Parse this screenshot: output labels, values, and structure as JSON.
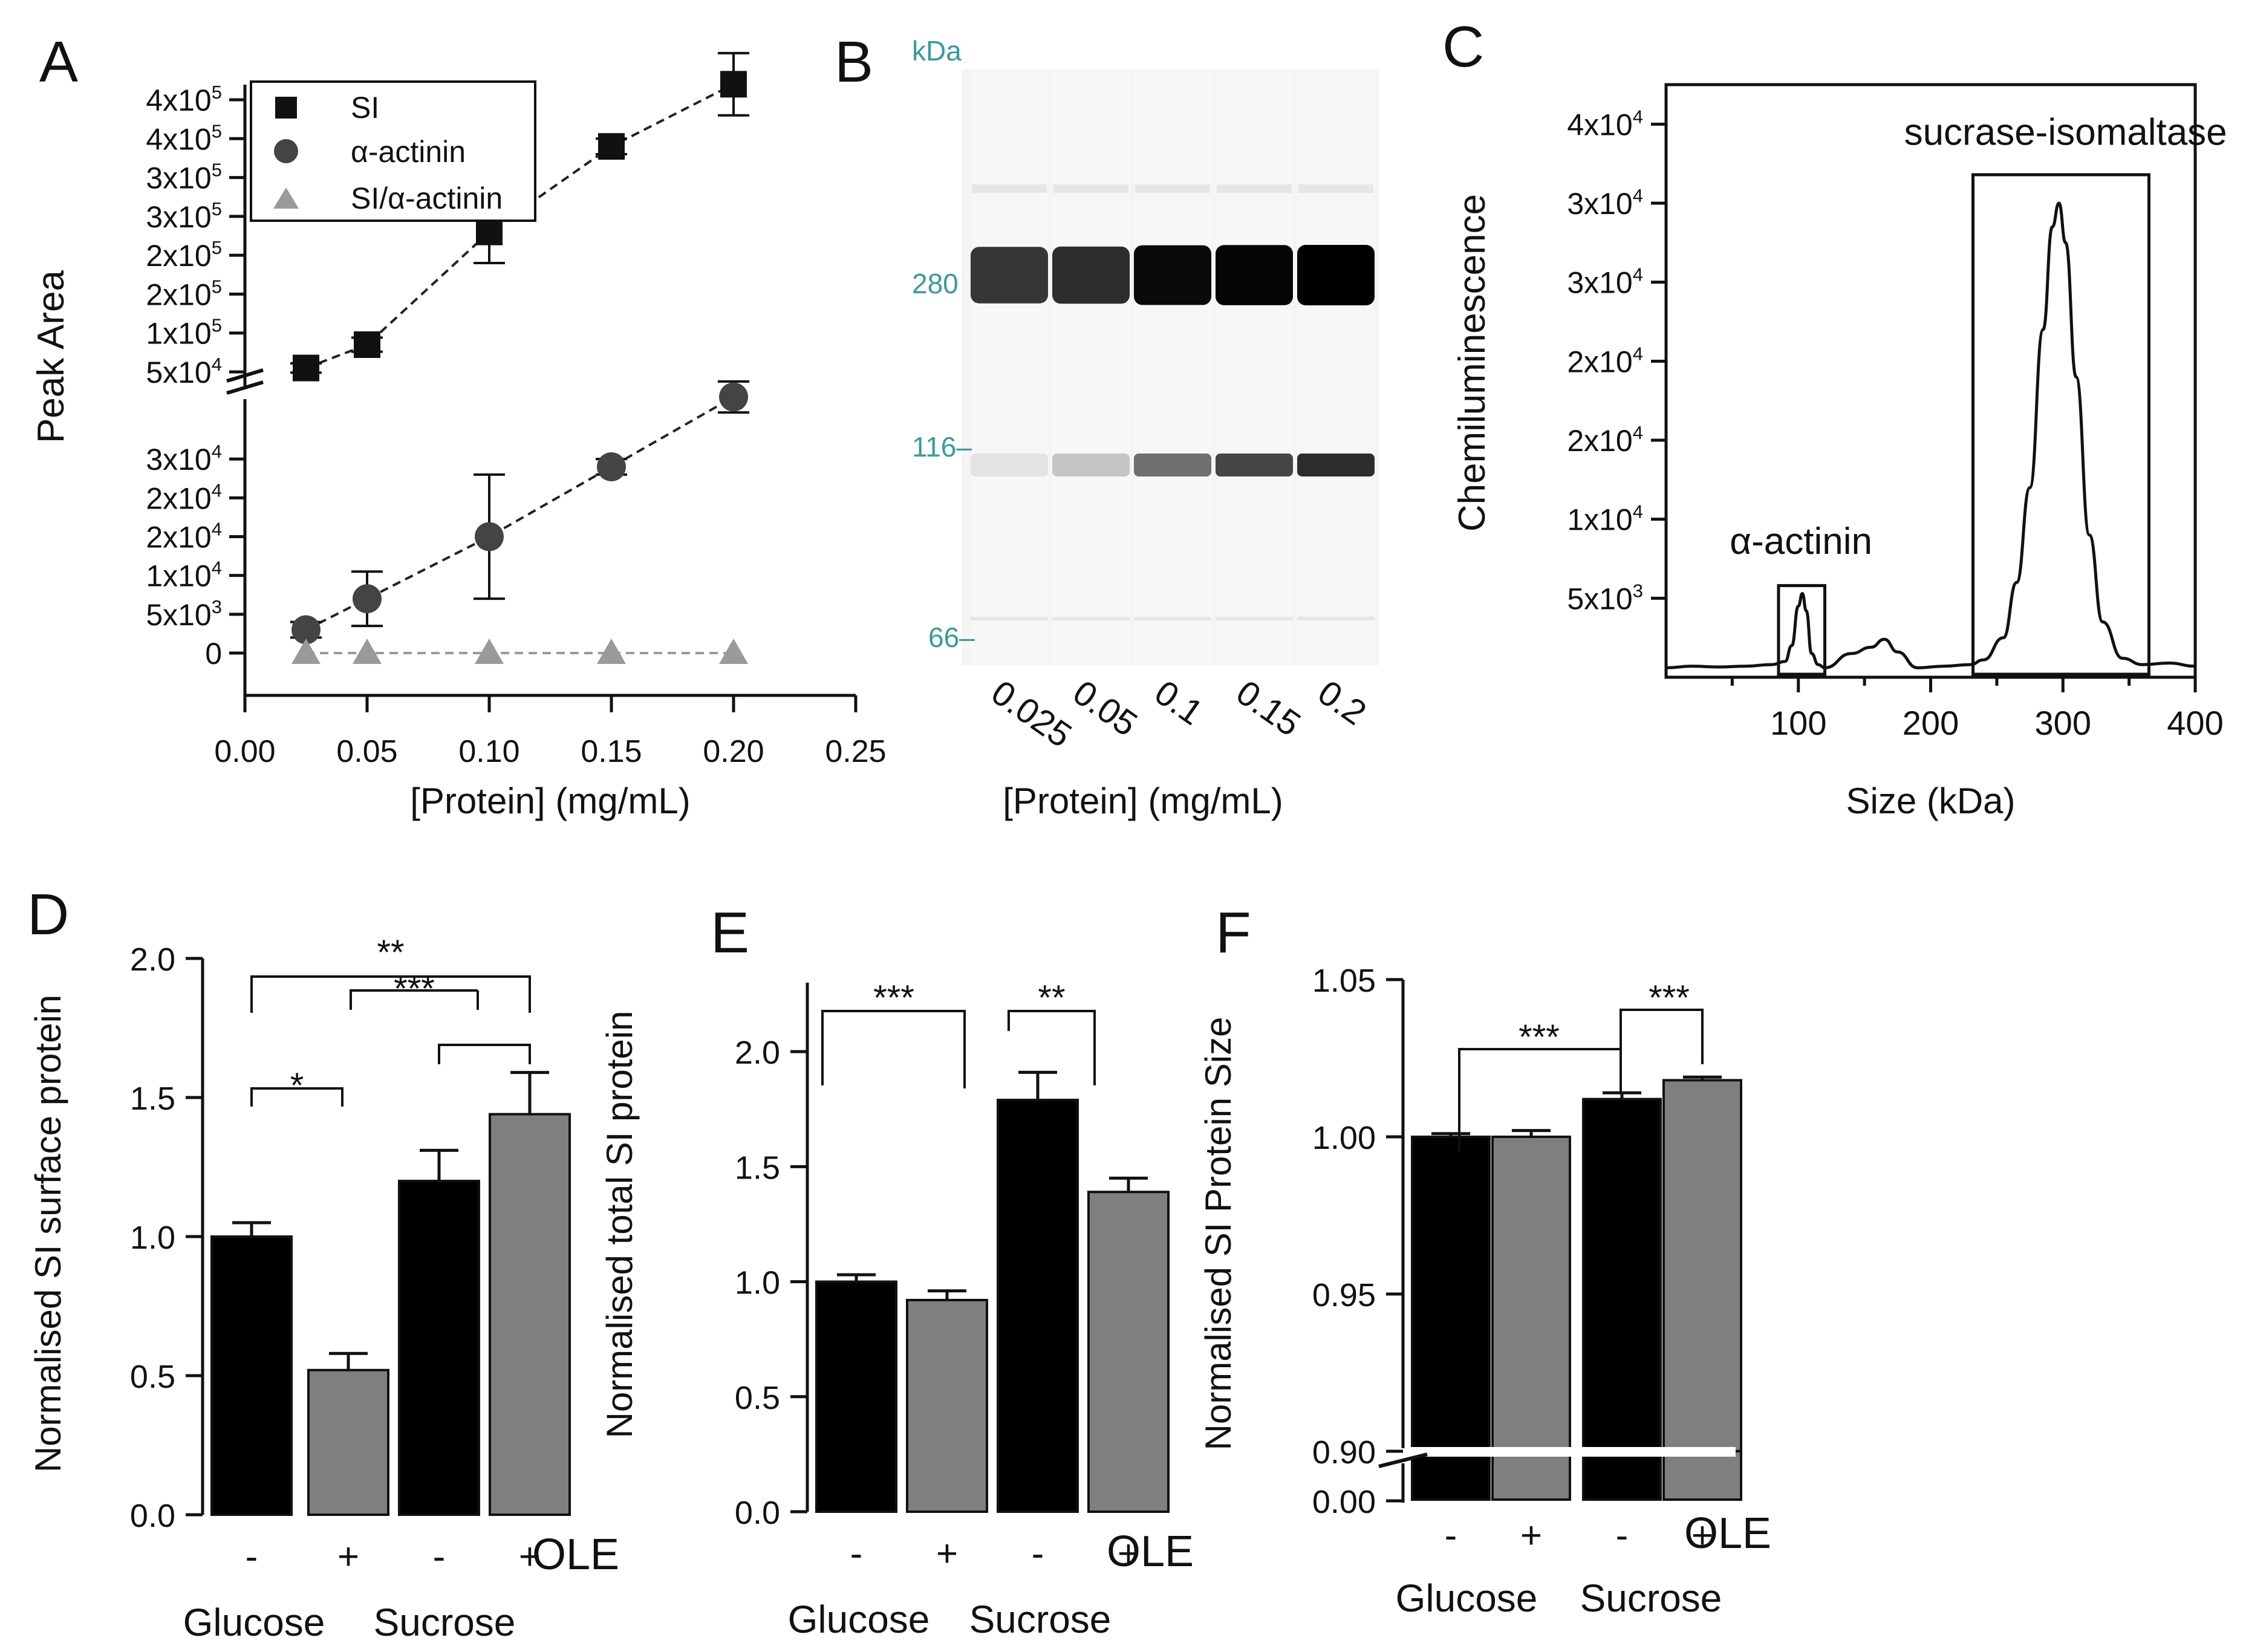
{
  "chart_data": [
    {
      "panel": "A",
      "type": "scatter",
      "xlabel": "[Protein] (mg/mL)",
      "ylabel": "Peak Area",
      "xlim": [
        0,
        0.25
      ],
      "x_ticks": [
        "0.00",
        "0.05",
        "0.10",
        "0.15",
        "0.20",
        "0.25"
      ],
      "y_ticks_lower": [
        "0",
        "5x10",
        "1x10",
        "2x10",
        "2x10",
        "3x10"
      ],
      "y_ticks_lower_exp": [
        "",
        "3",
        "4",
        "4",
        "4",
        "4"
      ],
      "y_ticks_upper": [
        "5x10",
        "1x10",
        "2x10",
        "2x10",
        "3x10",
        "3x10",
        "4x10",
        "4x10"
      ],
      "y_ticks_upper_exp": [
        "4",
        "5",
        "5",
        "5",
        "5",
        "5",
        "5",
        "5"
      ],
      "axis_break": true,
      "legend": [
        "SI",
        "α-actinin",
        "SI/α-actinin"
      ],
      "series": [
        {
          "name": "SI",
          "x": [
            0.025,
            0.05,
            0.1,
            0.15,
            0.2
          ],
          "values": [
            55000,
            85000,
            230000,
            340000,
            420000
          ],
          "err": [
            6000,
            9000,
            40000,
            10000,
            40000
          ]
        },
        {
          "name": "α-actinin",
          "x": [
            0.025,
            0.05,
            0.1,
            0.15,
            0.2
          ],
          "values": [
            3000,
            7000,
            15000,
            24000,
            33000
          ],
          "err": [
            1000,
            3500,
            8000,
            1000,
            2000
          ]
        },
        {
          "name": "SI/α-actinin",
          "x": [
            0.025,
            0.05,
            0.1,
            0.15,
            0.2
          ],
          "values": [
            0,
            0,
            0,
            0,
            0
          ],
          "err": [
            0,
            0,
            0,
            0,
            0
          ]
        }
      ]
    },
    {
      "panel": "B",
      "type": "gel",
      "unit_label": "kDa",
      "markers": [
        "280",
        "116",
        "66"
      ],
      "lanes": [
        "0.025",
        "0.05",
        "0.1",
        "0.15",
        "0.2"
      ],
      "xlabel": "[Protein] (mg/mL)",
      "band_280_intensity": [
        0.78,
        0.82,
        0.96,
        0.98,
        1.0
      ],
      "band_116_intensity": [
        0.08,
        0.2,
        0.55,
        0.72,
        0.82
      ]
    },
    {
      "panel": "C",
      "type": "line",
      "xlabel": "Size (kDa)",
      "ylabel": "Chemiluminescence",
      "xlim": [
        0,
        400
      ],
      "ylim": [
        0,
        37500
      ],
      "x_ticks": [
        "100",
        "200",
        "300",
        "400"
      ],
      "y_ticks": [
        "5x10",
        "1x10",
        "2x10",
        "2x10",
        "3x10",
        "3x10",
        "4x10"
      ],
      "y_ticks_exp": [
        "3",
        "4",
        "4",
        "4",
        "4",
        "4",
        "4"
      ],
      "annotations": [
        "α-actinin",
        "sucrase-isomaltase"
      ],
      "x": [
        0,
        20,
        40,
        60,
        80,
        90,
        95,
        100,
        103,
        106,
        110,
        115,
        120,
        140,
        155,
        165,
        175,
        190,
        210,
        230,
        240,
        255,
        265,
        275,
        285,
        292,
        297,
        302,
        310,
        320,
        330,
        345,
        360,
        380,
        400
      ],
      "values": [
        600,
        700,
        650,
        700,
        800,
        1000,
        2000,
        4500,
        5300,
        4200,
        1500,
        800,
        600,
        1500,
        1900,
        2400,
        1600,
        600,
        700,
        800,
        1100,
        2500,
        6000,
        12000,
        22000,
        28500,
        30000,
        27500,
        19000,
        9000,
        3500,
        1200,
        800,
        900,
        700
      ]
    },
    {
      "panel": "D",
      "type": "bar",
      "ylabel": "Normalised SI surface protein",
      "ylim": [
        0,
        2.0
      ],
      "y_ticks": [
        "0.0",
        "0.5",
        "1.0",
        "1.5",
        "2.0"
      ],
      "categories": [
        "-",
        "+",
        "-",
        "+"
      ],
      "suffix": "OLE",
      "groups": [
        "Glucose",
        "Sucrose"
      ],
      "values": [
        1.0,
        0.52,
        1.2,
        1.44
      ],
      "err": [
        0.05,
        0.06,
        0.11,
        0.15
      ],
      "colors": [
        "#000000",
        "#7f7f7f",
        "#000000",
        "#7f7f7f"
      ],
      "significance": [
        "*",
        "**",
        "***"
      ]
    },
    {
      "panel": "E",
      "type": "bar",
      "ylabel": "Normalised total SI protein",
      "ylim": [
        0,
        2.3
      ],
      "y_ticks": [
        "0.0",
        "0.5",
        "1.0",
        "1.5",
        "2.0"
      ],
      "categories": [
        "-",
        "+",
        "-",
        "+"
      ],
      "suffix": "OLE",
      "groups": [
        "Glucose",
        "Sucrose"
      ],
      "values": [
        1.0,
        0.92,
        1.79,
        1.39
      ],
      "err": [
        0.03,
        0.04,
        0.12,
        0.06
      ],
      "colors": [
        "#000000",
        "#7f7f7f",
        "#000000",
        "#7f7f7f"
      ],
      "significance": [
        "***",
        "**"
      ]
    },
    {
      "panel": "F",
      "type": "bar",
      "ylabel": "Normalised SI Protein Size",
      "ylim": [
        0.9,
        1.05
      ],
      "y_ticks": [
        "0.00",
        "0.90",
        "0.95",
        "1.00",
        "1.05"
      ],
      "axis_break": true,
      "categories": [
        "-",
        "+",
        "-",
        "+"
      ],
      "suffix": "OLE",
      "groups": [
        "Glucose",
        "Sucrose"
      ],
      "values": [
        1.0,
        1.0,
        1.012,
        1.018
      ],
      "err": [
        0.001,
        0.002,
        0.002,
        0.001
      ],
      "colors": [
        "#000000",
        "#7f7f7f",
        "#000000",
        "#7f7f7f"
      ],
      "significance": [
        "***",
        "***"
      ]
    }
  ]
}
